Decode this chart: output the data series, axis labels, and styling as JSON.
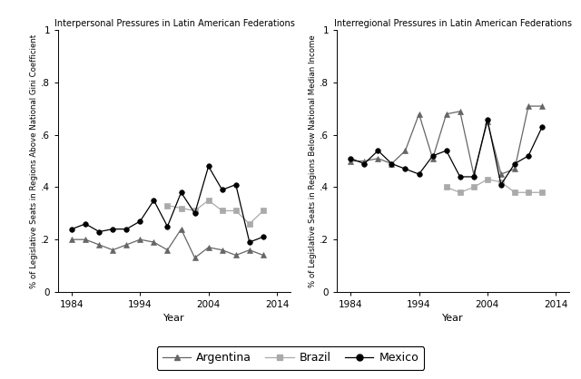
{
  "left_title": "Interpersonal Pressures in Latin American Federations",
  "right_title": "Interregional Pressures in Latin American Federations",
  "left_ylabel": "% of Legislative Seats in Regions Above National Gini Coefficient",
  "right_ylabel": "% of Legislative Seats in Regions Below National Median Income",
  "xlabel": "Year",
  "ylim": [
    0,
    1.0
  ],
  "yticks": [
    0,
    0.2,
    0.4,
    0.6,
    0.8,
    1.0
  ],
  "ytick_labels": [
    "0",
    ".2",
    ".4",
    ".6",
    ".8",
    "1"
  ],
  "xlim": [
    1982,
    2016
  ],
  "xticks": [
    1984,
    1994,
    2004,
    2014
  ],
  "left_argentina_years": [
    1984,
    1986,
    1988,
    1990,
    1992,
    1994,
    1996,
    1998,
    2000,
    2002,
    2004,
    2006,
    2008,
    2010,
    2012
  ],
  "left_argentina_vals": [
    0.2,
    0.2,
    0.18,
    0.16,
    0.18,
    0.2,
    0.19,
    0.16,
    0.24,
    0.13,
    0.17,
    0.16,
    0.14,
    0.16,
    0.14
  ],
  "left_brazil_years": [
    1998,
    2000,
    2002,
    2004,
    2006,
    2008,
    2010,
    2012
  ],
  "left_brazil_vals": [
    0.33,
    0.32,
    0.31,
    0.35,
    0.31,
    0.31,
    0.26,
    0.31
  ],
  "left_mexico_years": [
    1984,
    1986,
    1988,
    1990,
    1992,
    1994,
    1996,
    1998,
    2000,
    2002,
    2004,
    2006,
    2008,
    2010,
    2012
  ],
  "left_mexico_vals": [
    0.24,
    0.26,
    0.23,
    0.24,
    0.24,
    0.27,
    0.35,
    0.25,
    0.38,
    0.3,
    0.48,
    0.39,
    0.41,
    0.19,
    0.21
  ],
  "right_argentina_years": [
    1984,
    1986,
    1988,
    1990,
    1992,
    1994,
    1996,
    1998,
    2000,
    2002,
    2004,
    2006,
    2008,
    2010,
    2012
  ],
  "right_argentina_vals": [
    0.5,
    0.5,
    0.51,
    0.49,
    0.54,
    0.68,
    0.51,
    0.68,
    0.69,
    0.45,
    0.65,
    0.45,
    0.47,
    0.71,
    0.71
  ],
  "right_brazil_years": [
    1998,
    2000,
    2002,
    2004,
    2006,
    2008,
    2010,
    2012
  ],
  "right_brazil_vals": [
    0.4,
    0.38,
    0.4,
    0.43,
    0.42,
    0.38,
    0.38,
    0.38
  ],
  "right_mexico_years": [
    1984,
    1986,
    1988,
    1990,
    1992,
    1994,
    1996,
    1998,
    2000,
    2002,
    2004,
    2006,
    2008,
    2010,
    2012
  ],
  "right_mexico_vals": [
    0.51,
    0.49,
    0.54,
    0.49,
    0.47,
    0.45,
    0.52,
    0.54,
    0.44,
    0.44,
    0.66,
    0.41,
    0.49,
    0.52,
    0.63
  ],
  "argentina_color": "#666666",
  "brazil_color": "#aaaaaa",
  "mexico_color": "#000000",
  "line_width": 0.9,
  "marker_size": 4
}
